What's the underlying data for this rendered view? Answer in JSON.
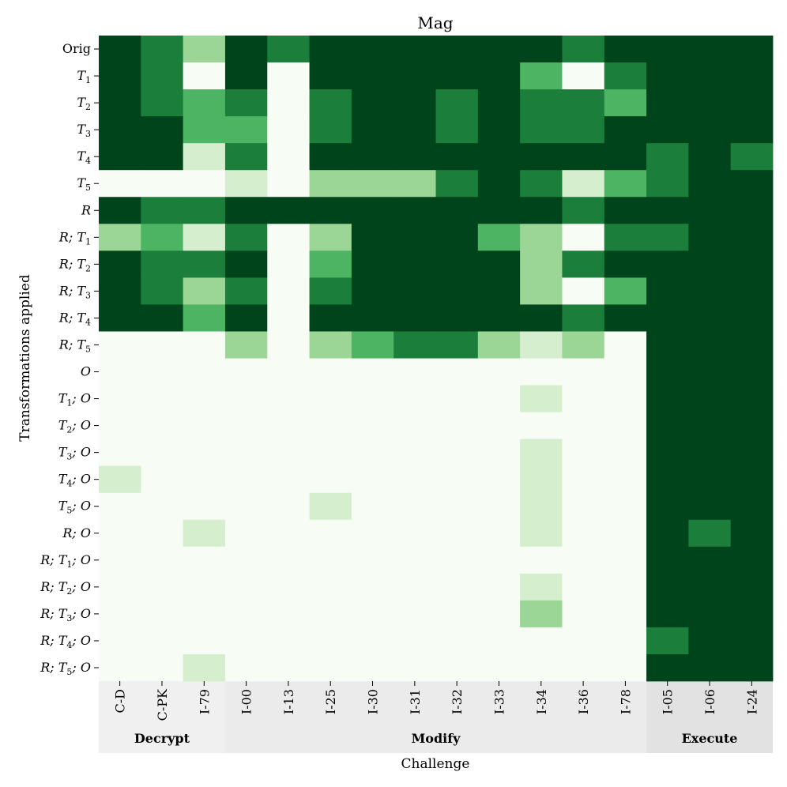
{
  "chart_data": {
    "type": "heatmap",
    "title": "Mag",
    "xlabel": "Challenge",
    "ylabel": "Transformations applied",
    "rows": [
      {
        "label": "Orig",
        "italic": false
      },
      {
        "label": "T1",
        "italic": true
      },
      {
        "label": "T2",
        "italic": true
      },
      {
        "label": "T3",
        "italic": true
      },
      {
        "label": "T4",
        "italic": true
      },
      {
        "label": "T5",
        "italic": true
      },
      {
        "label": "R",
        "italic": true
      },
      {
        "label": "R;T1",
        "italic": true
      },
      {
        "label": "R;T2",
        "italic": true
      },
      {
        "label": "R;T3",
        "italic": true
      },
      {
        "label": "R;T4",
        "italic": true
      },
      {
        "label": "R;T5",
        "italic": true
      },
      {
        "label": "O",
        "italic": true
      },
      {
        "label": "T1;O",
        "italic": true
      },
      {
        "label": "T2;O",
        "italic": true
      },
      {
        "label": "T3;O",
        "italic": true
      },
      {
        "label": "T4;O",
        "italic": true
      },
      {
        "label": "T5;O",
        "italic": true
      },
      {
        "label": "R;O",
        "italic": true
      },
      {
        "label": "R;T1;O",
        "italic": true
      },
      {
        "label": "R;T2;O",
        "italic": true
      },
      {
        "label": "R;T3;O",
        "italic": true
      },
      {
        "label": "R;T4;O",
        "italic": true
      },
      {
        "label": "R;T5;O",
        "italic": true
      }
    ],
    "columns": [
      "C-D",
      "C-PK",
      "I-79",
      "I-00",
      "I-13",
      "I-25",
      "I-30",
      "I-31",
      "I-32",
      "I-33",
      "I-34",
      "I-36",
      "I-78",
      "I-05",
      "I-06",
      "I-24"
    ],
    "groups": [
      {
        "label": "Decrypt",
        "start": 0,
        "end": 2,
        "color": "#f0f0f0"
      },
      {
        "label": "Modify",
        "start": 3,
        "end": 12,
        "color": "#ebebeb"
      },
      {
        "label": "Execute",
        "start": 13,
        "end": 15,
        "color": "#e2e2e2"
      }
    ],
    "value_scale": [
      0,
      5
    ],
    "colors": [
      "#f7fcf5",
      "#d4eece",
      "#9bd696",
      "#4cb463",
      "#1b7e3a",
      "#00441b"
    ],
    "values": [
      [
        5,
        4,
        2,
        5,
        4,
        5,
        5,
        5,
        5,
        5,
        5,
        4,
        5,
        5,
        5,
        5
      ],
      [
        5,
        4,
        0,
        5,
        0,
        5,
        5,
        5,
        5,
        5,
        3,
        0,
        4,
        5,
        5,
        5
      ],
      [
        5,
        4,
        3,
        4,
        0,
        4,
        5,
        5,
        4,
        5,
        4,
        4,
        3,
        5,
        5,
        5
      ],
      [
        5,
        5,
        3,
        3,
        0,
        4,
        5,
        5,
        4,
        5,
        4,
        4,
        5,
        5,
        5,
        5
      ],
      [
        5,
        5,
        1,
        4,
        0,
        5,
        5,
        5,
        5,
        5,
        5,
        5,
        5,
        4,
        5,
        4
      ],
      [
        0,
        0,
        0,
        1,
        0,
        2,
        2,
        2,
        4,
        5,
        4,
        1,
        3,
        4,
        5,
        5
      ],
      [
        5,
        4,
        4,
        5,
        5,
        5,
        5,
        5,
        5,
        5,
        5,
        4,
        5,
        5,
        5,
        5
      ],
      [
        2,
        3,
        1,
        4,
        0,
        2,
        5,
        5,
        5,
        3,
        2,
        0,
        4,
        4,
        5,
        5
      ],
      [
        5,
        4,
        4,
        5,
        0,
        3,
        5,
        5,
        5,
        5,
        2,
        4,
        5,
        5,
        5,
        5
      ],
      [
        5,
        4,
        2,
        4,
        0,
        4,
        5,
        5,
        5,
        5,
        2,
        0,
        3,
        5,
        5,
        5
      ],
      [
        5,
        5,
        3,
        5,
        0,
        5,
        5,
        5,
        5,
        5,
        5,
        4,
        5,
        5,
        5,
        5
      ],
      [
        0,
        0,
        0,
        2,
        0,
        2,
        3,
        4,
        4,
        2,
        1,
        2,
        0,
        5,
        5,
        5
      ],
      [
        0,
        0,
        0,
        0,
        0,
        0,
        0,
        0,
        0,
        0,
        0,
        0,
        0,
        5,
        5,
        5
      ],
      [
        0,
        0,
        0,
        0,
        0,
        0,
        0,
        0,
        0,
        0,
        1,
        0,
        0,
        5,
        5,
        5
      ],
      [
        0,
        0,
        0,
        0,
        0,
        0,
        0,
        0,
        0,
        0,
        0,
        0,
        0,
        5,
        5,
        5
      ],
      [
        0,
        0,
        0,
        0,
        0,
        0,
        0,
        0,
        0,
        0,
        1,
        0,
        0,
        5,
        5,
        5
      ],
      [
        1,
        0,
        0,
        0,
        0,
        0,
        0,
        0,
        0,
        0,
        1,
        0,
        0,
        5,
        5,
        5
      ],
      [
        0,
        0,
        0,
        0,
        0,
        1,
        0,
        0,
        0,
        0,
        1,
        0,
        0,
        5,
        5,
        5
      ],
      [
        0,
        0,
        1,
        0,
        0,
        0,
        0,
        0,
        0,
        0,
        1,
        0,
        0,
        5,
        4,
        5
      ],
      [
        0,
        0,
        0,
        0,
        0,
        0,
        0,
        0,
        0,
        0,
        0,
        0,
        0,
        5,
        5,
        5
      ],
      [
        0,
        0,
        0,
        0,
        0,
        0,
        0,
        0,
        0,
        0,
        1,
        0,
        0,
        5,
        5,
        5
      ],
      [
        0,
        0,
        0,
        0,
        0,
        0,
        0,
        0,
        0,
        0,
        2,
        0,
        0,
        5,
        5,
        5
      ],
      [
        0,
        0,
        0,
        0,
        0,
        0,
        0,
        0,
        0,
        0,
        0,
        0,
        0,
        4,
        5,
        5
      ],
      [
        0,
        0,
        1,
        0,
        0,
        0,
        0,
        0,
        0,
        0,
        0,
        0,
        0,
        5,
        5,
        5
      ]
    ]
  }
}
